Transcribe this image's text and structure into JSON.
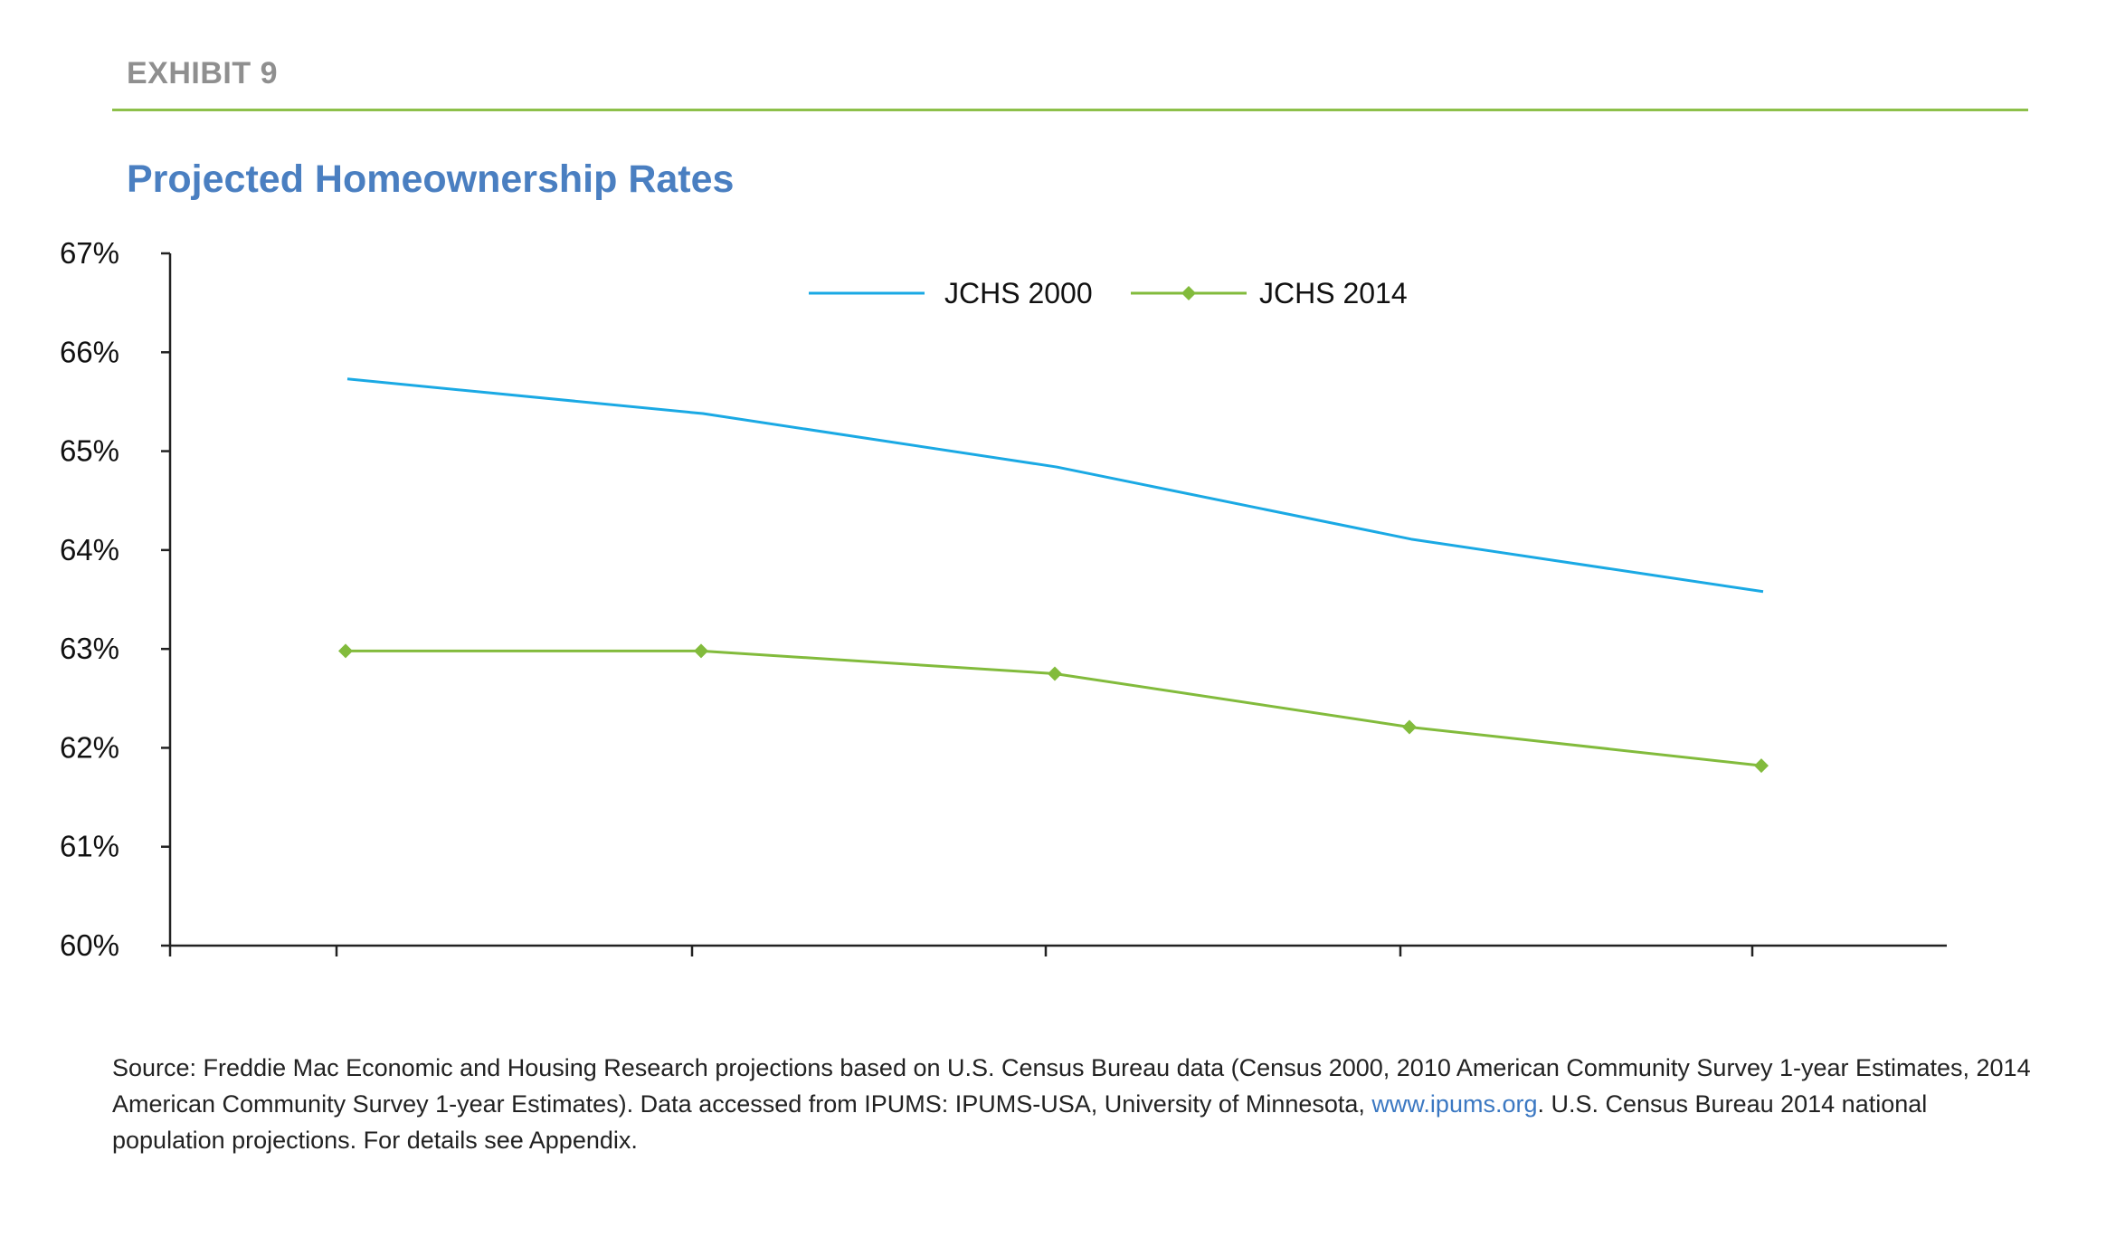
{
  "header": {
    "exhibit": "EXHIBIT 9"
  },
  "chart_data": {
    "type": "line",
    "title": "Projected Homeownership Rates",
    "xlabel": "",
    "ylabel": "",
    "categories": [
      "",
      "",
      "",
      "",
      ""
    ],
    "ylim": [
      60,
      67
    ],
    "yticks": [
      "60%",
      "61%",
      "62%",
      "63%",
      "64%",
      "65%",
      "66%",
      "67%"
    ],
    "grid": false,
    "legend_position": "top-center",
    "series": [
      {
        "name": "JCHS 2000",
        "color": "#1aa9e4",
        "marker": "none",
        "values": [
          65.73,
          65.38,
          64.84,
          64.11,
          63.58
        ]
      },
      {
        "name": "JCHS 2014",
        "color": "#82bb3c",
        "marker": "diamond",
        "values": [
          62.98,
          62.98,
          62.75,
          62.21,
          61.82
        ]
      }
    ]
  },
  "source": {
    "text_before_link": "Source: Freddie Mac Economic and Housing Research projections based on U.S. Census Bureau data (Census 2000, 2010 American Community Survey 1-year Estimates, 2014 American Community Survey 1-year Estimates). Data accessed from IPUMS: IPUMS-USA, University of Minnesota, ",
    "link_text": "www.ipums.org",
    "text_after_link": ". U.S. Census Bureau 2014 national population projections. For details see Appendix."
  }
}
